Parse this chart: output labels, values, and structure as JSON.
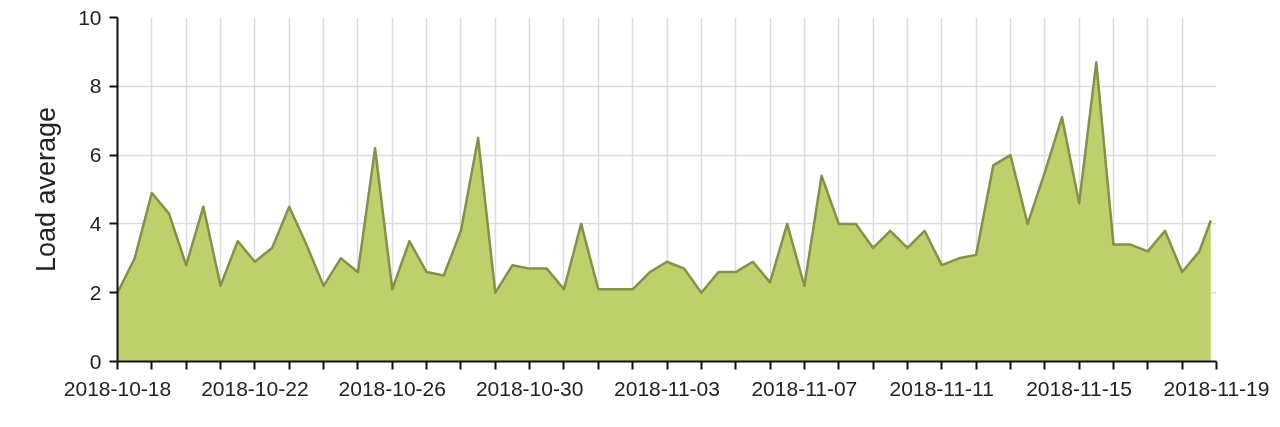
{
  "chart_data": {
    "type": "area",
    "ylabel": "Load average",
    "color": "#bdd06c",
    "x": [
      "2018-10-18T00:00",
      "2018-10-18T12:00",
      "2018-10-19T00:00",
      "2018-10-19T12:00",
      "2018-10-20T00:00",
      "2018-10-20T12:00",
      "2018-10-21T00:00",
      "2018-10-21T12:00",
      "2018-10-22T00:00",
      "2018-10-22T12:00",
      "2018-10-23T00:00",
      "2018-10-23T12:00",
      "2018-10-24T00:00",
      "2018-10-24T12:00",
      "2018-10-25T00:00",
      "2018-10-25T12:00",
      "2018-10-26T00:00",
      "2018-10-26T12:00",
      "2018-10-27T00:00",
      "2018-10-27T12:00",
      "2018-10-28T00:00",
      "2018-10-28T12:00",
      "2018-10-29T00:00",
      "2018-10-29T12:00",
      "2018-10-30T00:00",
      "2018-10-30T12:00",
      "2018-10-31T00:00",
      "2018-10-31T12:00",
      "2018-11-01T00:00",
      "2018-11-01T12:00",
      "2018-11-02T00:00",
      "2018-11-02T12:00",
      "2018-11-03T00:00",
      "2018-11-03T12:00",
      "2018-11-04T00:00",
      "2018-11-04T12:00",
      "2018-11-05T00:00",
      "2018-11-05T12:00",
      "2018-11-06T00:00",
      "2018-11-06T12:00",
      "2018-11-07T00:00",
      "2018-11-07T12:00",
      "2018-11-08T00:00",
      "2018-11-08T12:00",
      "2018-11-09T00:00",
      "2018-11-09T12:00",
      "2018-11-10T00:00",
      "2018-11-10T12:00",
      "2018-11-11T00:00",
      "2018-11-11T12:00",
      "2018-11-12T00:00",
      "2018-11-12T12:00",
      "2018-11-13T00:00",
      "2018-11-13T12:00",
      "2018-11-14T00:00",
      "2018-11-14T12:00",
      "2018-11-15T00:00",
      "2018-11-15T12:00",
      "2018-11-16T00:00",
      "2018-11-16T12:00",
      "2018-11-17T00:00",
      "2018-11-17T12:00",
      "2018-11-18T00:00",
      "2018-11-18T12:00",
      "2018-11-18T20:00"
    ],
    "values": [
      2.0,
      3.0,
      4.9,
      4.3,
      2.8,
      4.5,
      2.2,
      3.5,
      2.9,
      3.3,
      4.5,
      3.4,
      2.2,
      3.0,
      2.6,
      6.2,
      2.1,
      3.5,
      2.6,
      2.5,
      3.8,
      6.5,
      2.0,
      2.8,
      2.7,
      2.7,
      2.1,
      4.0,
      2.1,
      2.1,
      2.1,
      2.6,
      2.9,
      2.7,
      2.0,
      2.6,
      2.6,
      2.9,
      2.3,
      4.0,
      2.2,
      5.4,
      4.0,
      4.0,
      3.3,
      3.8,
      3.3,
      3.8,
      2.8,
      3.0,
      3.1,
      5.7,
      6.0,
      4.0,
      5.5,
      7.1,
      4.6,
      8.7,
      3.4,
      3.4,
      3.2,
      3.8,
      2.6,
      3.2,
      4.1
    ],
    "xlim": [
      "2018-10-18",
      "2018-11-19"
    ],
    "xticks": [
      {
        "value": "2018-10-18",
        "label": "2018-10-18"
      },
      {
        "value": "2018-10-19",
        "label": null
      },
      {
        "value": "2018-10-20",
        "label": null
      },
      {
        "value": "2018-10-21",
        "label": null
      },
      {
        "value": "2018-10-22",
        "label": "2018-10-22"
      },
      {
        "value": "2018-10-23",
        "label": null
      },
      {
        "value": "2018-10-24",
        "label": null
      },
      {
        "value": "2018-10-25",
        "label": null
      },
      {
        "value": "2018-10-26",
        "label": "2018-10-26"
      },
      {
        "value": "2018-10-27",
        "label": null
      },
      {
        "value": "2018-10-28",
        "label": null
      },
      {
        "value": "2018-10-29",
        "label": null
      },
      {
        "value": "2018-10-30",
        "label": "2018-10-30"
      },
      {
        "value": "2018-10-31",
        "label": null
      },
      {
        "value": "2018-11-01",
        "label": null
      },
      {
        "value": "2018-11-02",
        "label": null
      },
      {
        "value": "2018-11-03",
        "label": "2018-11-03"
      },
      {
        "value": "2018-11-04",
        "label": null
      },
      {
        "value": "2018-11-05",
        "label": null
      },
      {
        "value": "2018-11-06",
        "label": null
      },
      {
        "value": "2018-11-07",
        "label": "2018-11-07"
      },
      {
        "value": "2018-11-08",
        "label": null
      },
      {
        "value": "2018-11-09",
        "label": null
      },
      {
        "value": "2018-11-10",
        "label": null
      },
      {
        "value": "2018-11-11",
        "label": "2018-11-11"
      },
      {
        "value": "2018-11-12",
        "label": null
      },
      {
        "value": "2018-11-13",
        "label": null
      },
      {
        "value": "2018-11-14",
        "label": null
      },
      {
        "value": "2018-11-15",
        "label": "2018-11-15"
      },
      {
        "value": "2018-11-16",
        "label": null
      },
      {
        "value": "2018-11-17",
        "label": null
      },
      {
        "value": "2018-11-18",
        "label": null
      },
      {
        "value": "2018-11-19",
        "label": "2018-11-19"
      }
    ],
    "ylim": [
      0,
      10
    ],
    "yticks": [
      0,
      2,
      4,
      6,
      8,
      10
    ],
    "grid": true
  }
}
